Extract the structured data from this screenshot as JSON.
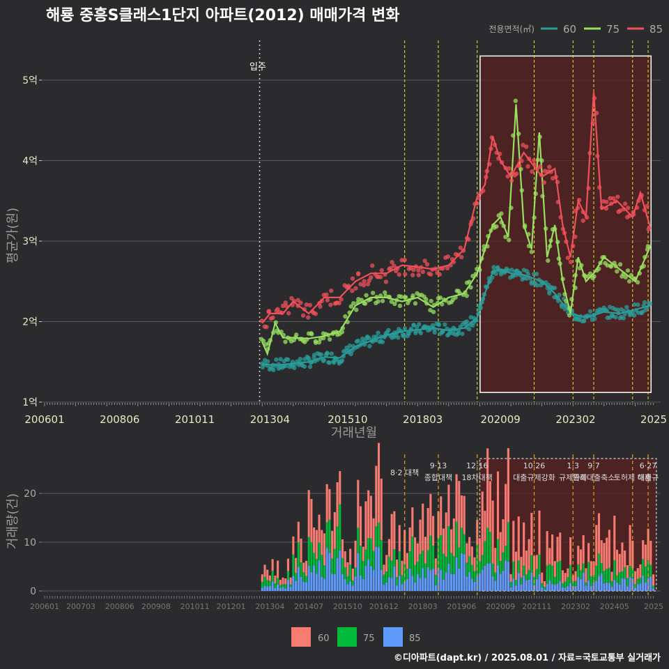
{
  "title": "해룡 중흥S클래스1단지 아파트(2012) 매매가격 변화",
  "footer": "©디아파트(dapt.kr) / 2025.08.01 / 자료=국토교통부 실거래가",
  "colors": {
    "bg": "#2b2b2d",
    "grid": "#5a5a5e",
    "s60": "#2a9d9a",
    "s75": "#98e060",
    "s85": "#f0505a",
    "v60": "#f77b72",
    "v75": "#00b93b",
    "v85": "#5e9bfa",
    "policy_upper": "#e8e830",
    "policy_lower": "#e0a020",
    "highlight_fill": "#5a2020",
    "highlight_border": "#ffffff",
    "axis_text": "#e8e8c8"
  },
  "chart_data": [
    {
      "type": "line",
      "title": "해룡 중흥S클래스1단지 아파트(2012) 매매가격 변화",
      "xlabel": "거래년월",
      "ylabel": "평균가(원)",
      "x_ticks": [
        "200601",
        "200806",
        "201011",
        "201304",
        "201510",
        "201803",
        "202009",
        "202302",
        "2025"
      ],
      "y_ticks": [
        {
          "value": 1,
          "label": "1억"
        },
        {
          "value": 2,
          "label": "2억"
        },
        {
          "value": 3,
          "label": "3억"
        },
        {
          "value": 4,
          "label": "4억"
        },
        {
          "value": 5,
          "label": "5억"
        }
      ],
      "xlim": [
        "2006-01",
        "2025-08"
      ],
      "ylim": [
        1,
        5.3
      ],
      "legend_title": "전용면적(㎡)",
      "legend_position": "top-right",
      "move_in": {
        "date": "2012-12",
        "label": "입주"
      },
      "policy_lines": [
        "2017-08",
        "2018-09",
        "2019-12",
        "2021-10",
        "2023-01",
        "2023-09",
        "2024-12",
        "2025-06"
      ],
      "highlight": {
        "start": "2020-01",
        "end": "2025-07",
        "ymin": 1.12,
        "ymax": 5.3
      },
      "series": [
        {
          "name": "60",
          "points": [
            [
              "2013-01",
              1.47
            ],
            [
              "2013-07",
              1.46
            ],
            [
              "2014-01",
              1.48
            ],
            [
              "2014-07",
              1.5
            ],
            [
              "2015-01",
              1.56
            ],
            [
              "2015-07",
              1.55
            ],
            [
              "2016-01",
              1.69
            ],
            [
              "2016-07",
              1.76
            ],
            [
              "2017-01",
              1.83
            ],
            [
              "2017-07",
              1.88
            ],
            [
              "2018-01",
              1.9
            ],
            [
              "2018-07",
              1.92
            ],
            [
              "2019-01",
              1.89
            ],
            [
              "2019-07",
              1.92
            ],
            [
              "2019-12",
              2.05
            ],
            [
              "2020-03",
              2.35
            ],
            [
              "2020-06",
              2.62
            ],
            [
              "2020-09",
              2.65
            ],
            [
              "2021-01",
              2.6
            ],
            [
              "2021-06",
              2.58
            ],
            [
              "2022-01",
              2.5
            ],
            [
              "2022-06",
              2.35
            ],
            [
              "2022-12",
              2.1
            ],
            [
              "2023-06",
              2.05
            ],
            [
              "2024-01",
              2.12
            ],
            [
              "2024-07",
              2.1
            ],
            [
              "2025-01",
              2.15
            ],
            [
              "2025-07",
              2.2
            ]
          ]
        },
        {
          "name": "75",
          "points": [
            [
              "2013-01",
              1.75
            ],
            [
              "2013-03",
              1.6
            ],
            [
              "2013-06",
              1.98
            ],
            [
              "2013-09",
              1.8
            ],
            [
              "2014-01",
              1.8
            ],
            [
              "2014-07",
              1.79
            ],
            [
              "2015-01",
              1.82
            ],
            [
              "2015-07",
              1.88
            ],
            [
              "2016-01",
              2.2
            ],
            [
              "2016-07",
              2.3
            ],
            [
              "2017-01",
              2.3
            ],
            [
              "2017-07",
              2.25
            ],
            [
              "2018-01",
              2.3
            ],
            [
              "2018-07",
              2.18
            ],
            [
              "2019-01",
              2.3
            ],
            [
              "2019-07",
              2.35
            ],
            [
              "2019-12",
              2.6
            ],
            [
              "2020-03",
              2.9
            ],
            [
              "2020-06",
              3.2
            ],
            [
              "2020-09",
              3.3
            ],
            [
              "2020-12",
              3.05
            ],
            [
              "2021-03",
              4.7
            ],
            [
              "2021-06",
              3.2
            ],
            [
              "2021-09",
              2.9
            ],
            [
              "2021-12",
              4.35
            ],
            [
              "2022-03",
              2.8
            ],
            [
              "2022-06",
              3.2
            ],
            [
              "2022-09",
              2.5
            ],
            [
              "2022-12",
              2.1
            ],
            [
              "2023-03",
              2.8
            ],
            [
              "2023-06",
              2.5
            ],
            [
              "2023-09",
              2.6
            ],
            [
              "2024-01",
              2.8
            ],
            [
              "2024-07",
              2.65
            ],
            [
              "2025-01",
              2.5
            ],
            [
              "2025-07",
              2.95
            ]
          ]
        },
        {
          "name": "85",
          "points": [
            [
              "2013-01",
              1.98
            ],
            [
              "2013-04",
              2.1
            ],
            [
              "2013-09",
              2.1
            ],
            [
              "2014-01",
              2.25
            ],
            [
              "2014-07",
              2.1
            ],
            [
              "2015-01",
              2.3
            ],
            [
              "2015-07",
              2.3
            ],
            [
              "2016-01",
              2.5
            ],
            [
              "2016-07",
              2.6
            ],
            [
              "2017-01",
              2.6
            ],
            [
              "2017-07",
              2.7
            ],
            [
              "2018-01",
              2.68
            ],
            [
              "2018-07",
              2.65
            ],
            [
              "2019-01",
              2.7
            ],
            [
              "2019-07",
              2.9
            ],
            [
              "2019-12",
              3.55
            ],
            [
              "2020-03",
              3.7
            ],
            [
              "2020-06",
              4.3
            ],
            [
              "2020-09",
              4.0
            ],
            [
              "2021-01",
              3.8
            ],
            [
              "2021-06",
              4.1
            ],
            [
              "2022-01",
              3.8
            ],
            [
              "2022-06",
              3.9
            ],
            [
              "2022-09",
              3.2
            ],
            [
              "2022-12",
              2.8
            ],
            [
              "2023-03",
              3.5
            ],
            [
              "2023-06",
              3.3
            ],
            [
              "2023-09",
              4.85
            ],
            [
              "2023-12",
              3.4
            ],
            [
              "2024-06",
              3.5
            ],
            [
              "2024-12",
              3.3
            ],
            [
              "2025-03",
              3.6
            ],
            [
              "2025-07",
              3.15
            ]
          ]
        }
      ]
    },
    {
      "type": "bar",
      "ylabel": "거래량(건)",
      "x_ticks": [
        "200601",
        "200703",
        "200806",
        "200908",
        "201011",
        "201201",
        "201304",
        "201407",
        "201510",
        "201612",
        "201803",
        "201906",
        "202009",
        "202111",
        "202302",
        "202405",
        "2025"
      ],
      "y_ticks": [
        0,
        10,
        20
      ],
      "ylim": [
        0,
        26
      ],
      "stacked": true,
      "legend_position": "bottom",
      "series_names": [
        "60",
        "75",
        "85"
      ],
      "volume_by_year": [
        {
          "year": 2013,
          "v60": 2,
          "v75": 1,
          "v85": 1
        },
        {
          "year": 2014,
          "v60": 5,
          "v75": 3,
          "v85": 3
        },
        {
          "year": 2015,
          "v60": 6,
          "v75": 4,
          "v85": 4
        },
        {
          "year": 2016,
          "v60": 7,
          "v75": 4,
          "v85": 4
        },
        {
          "year": 2017,
          "v60": 6,
          "v75": 4,
          "v85": 3
        },
        {
          "year": 2018,
          "v60": 6,
          "v75": 4,
          "v85": 3
        },
        {
          "year": 2019,
          "v60": 6,
          "v75": 4,
          "v85": 4
        },
        {
          "year": 2020,
          "v60": 10,
          "v75": 4,
          "v85": 4
        },
        {
          "year": 2021,
          "v60": 5,
          "v75": 2,
          "v85": 2
        },
        {
          "year": 2022,
          "v60": 3,
          "v75": 2,
          "v85": 1
        },
        {
          "year": 2023,
          "v60": 4,
          "v75": 2,
          "v85": 2
        },
        {
          "year": 2024,
          "v60": 5,
          "v75": 2,
          "v85": 2
        },
        {
          "year": 2025,
          "v60": 4,
          "v75": 2,
          "v85": 2
        }
      ],
      "policy_annotations": [
        {
          "date": "2017-08",
          "lines": [
            "8·2 대책"
          ]
        },
        {
          "date": "2018-09",
          "lines": [
            "9·13",
            "종합대책"
          ]
        },
        {
          "date": "2019-12",
          "lines": [
            "12·16",
            "18차대책"
          ]
        },
        {
          "date": "2021-10",
          "lines": [
            "10·26",
            "대출규제강화"
          ]
        },
        {
          "date": "2023-01",
          "lines": [
            "1·3",
            "규제완화"
          ]
        },
        {
          "date": "2023-09",
          "lines": [
            "9·7",
            "특례대출축소"
          ]
        },
        {
          "date": "2024-12",
          "lines": [
            "",
            "토허제 해제"
          ]
        },
        {
          "date": "2025-06",
          "lines": [
            "6·27",
            "대출규"
          ]
        }
      ],
      "highlight": {
        "start": "2020-01",
        "end": "2025-07"
      }
    }
  ]
}
